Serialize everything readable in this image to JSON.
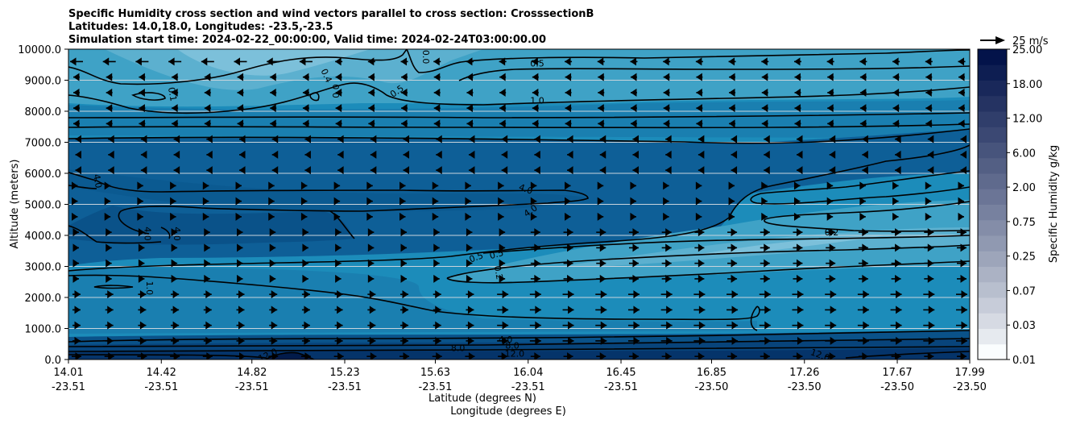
{
  "chart_data": {
    "type": "contour",
    "title_lines": [
      "Specific Humidity cross section and wind vectors parallel to cross section: CrosssectionB",
      "Latitudes: 14.0,18.0, Longitudes: -23.5,-23.5",
      "Simulation start time: 2024-02-22_00:00:00, Valid time: 2024-02-24T03:00:00.00"
    ],
    "xlabel_lat": "Latitude (degrees N)",
    "xlabel_lon": "Longitude (degrees E)",
    "ylabel": "Altitude (meters)",
    "ylim": [
      0,
      10000
    ],
    "yticks": [
      "0.0",
      "1000.0",
      "2000.0",
      "3000.0",
      "4000.0",
      "5000.0",
      "6000.0",
      "7000.0",
      "8000.0",
      "9000.0",
      "10000.0"
    ],
    "x_range": [
      14.01,
      17.99
    ],
    "xticks": [
      {
        "lat": "14.01",
        "lon": "-23.51"
      },
      {
        "lat": "14.42",
        "lon": "-23.51"
      },
      {
        "lat": "14.82",
        "lon": "-23.51"
      },
      {
        "lat": "15.23",
        "lon": "-23.51"
      },
      {
        "lat": "15.63",
        "lon": "-23.51"
      },
      {
        "lat": "16.04",
        "lon": "-23.51"
      },
      {
        "lat": "16.45",
        "lon": "-23.51"
      },
      {
        "lat": "16.85",
        "lon": "-23.50"
      },
      {
        "lat": "17.26",
        "lon": "-23.50"
      },
      {
        "lat": "17.67",
        "lon": "-23.50"
      },
      {
        "lat": "17.99",
        "lon": "-23.50"
      }
    ],
    "colorbar": {
      "label": "Specific Humidity g/kg",
      "tick_labels": [
        "0.01",
        "0.03",
        "0.07",
        "0.25",
        "0.75",
        "2.00",
        "6.00",
        "12.00",
        "18.00",
        "25.00"
      ],
      "levels": 20
    },
    "quiver_key": {
      "label": "25 m/s",
      "speed": 25
    },
    "contour_labels": [
      {
        "text": "0.5",
        "lat": 16.08,
        "alt": 9550
      },
      {
        "text": "1.0",
        "lat": 16.08,
        "alt": 8350
      },
      {
        "text": "0.5",
        "lat": 15.46,
        "alt": 8650,
        "rot": -35
      },
      {
        "text": "0.1",
        "lat": 14.47,
        "alt": 8550,
        "rot": 80
      },
      {
        "text": "0.4",
        "lat": 15.15,
        "alt": 9150,
        "rot": 65
      },
      {
        "text": "0.0",
        "lat": 15.19,
        "alt": 8650,
        "rot": -90
      },
      {
        "text": "0.0",
        "lat": 15.59,
        "alt": 9750,
        "rot": 90
      },
      {
        "text": "4.0",
        "lat": 16.03,
        "alt": 5500,
        "rot": 20
      },
      {
        "text": "4.0",
        "lat": 16.05,
        "alt": 4800,
        "rot": -35
      },
      {
        "text": "4.0",
        "lat": 14.14,
        "alt": 5750,
        "rot": 80
      },
      {
        "text": "4.0",
        "lat": 14.36,
        "alt": 4050,
        "rot": 90
      },
      {
        "text": "4.0",
        "lat": 14.49,
        "alt": 4050,
        "rot": 90
      },
      {
        "text": "1.0",
        "lat": 14.37,
        "alt": 2300,
        "rot": 90
      },
      {
        "text": "0.2",
        "lat": 17.38,
        "alt": 4100
      },
      {
        "text": "0.5",
        "lat": 15.81,
        "alt": 3300,
        "rot": -20
      },
      {
        "text": "0.5",
        "lat": 15.9,
        "alt": 3400,
        "rot": -15
      },
      {
        "text": "0.2",
        "lat": 15.91,
        "alt": 2800,
        "rot": 80
      },
      {
        "text": "4.0",
        "lat": 15.94,
        "alt": 650
      },
      {
        "text": "8.0",
        "lat": 15.97,
        "alt": 450
      },
      {
        "text": "8.0",
        "lat": 15.73,
        "alt": 380
      },
      {
        "text": "12.0",
        "lat": 15.98,
        "alt": 200
      },
      {
        "text": "12.0",
        "lat": 14.89,
        "alt": 150,
        "rot": -25
      },
      {
        "text": "12.0",
        "lat": 17.33,
        "alt": 150,
        "rot": 20
      }
    ]
  }
}
